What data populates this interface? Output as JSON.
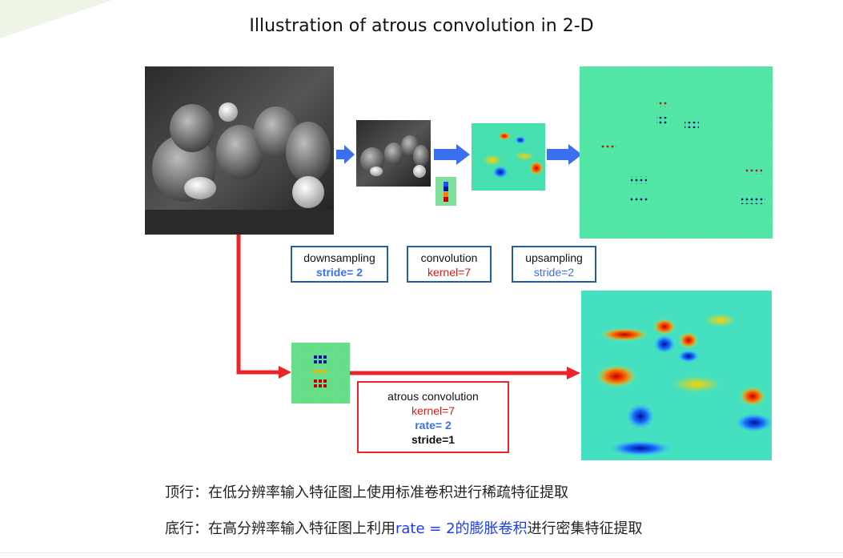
{
  "title": "Illustration of atrous convolution in 2-D",
  "boxes": {
    "downsampling": {
      "line1": "downsampling",
      "line2": "stride= 2"
    },
    "convolution": {
      "line1": "convolution",
      "line2": "kernel=7"
    },
    "upsampling": {
      "line1": "upsampling",
      "line2": "stride=2"
    },
    "atrous": {
      "line1": "atrous convolution",
      "line2": "kernel=7",
      "line3": "rate= 2",
      "line4": "stride=1"
    }
  },
  "captions": {
    "top": "顶行：在低分辨率输入特征图上使用标准卷积进行稀疏特征提取",
    "bottom_pre": "底行：在高分辨率输入特征图上利用",
    "bottom_highlight": "rate = 2的膨胀卷积",
    "bottom_post": "进行密集特征提取"
  },
  "colors": {
    "blue_arrow": "#3a6ff0",
    "red_arrow": "#e8262a",
    "highlight": "#1a3cff",
    "box_blue_border": "#1f5fa6",
    "box_red_border": "#e8262a"
  }
}
